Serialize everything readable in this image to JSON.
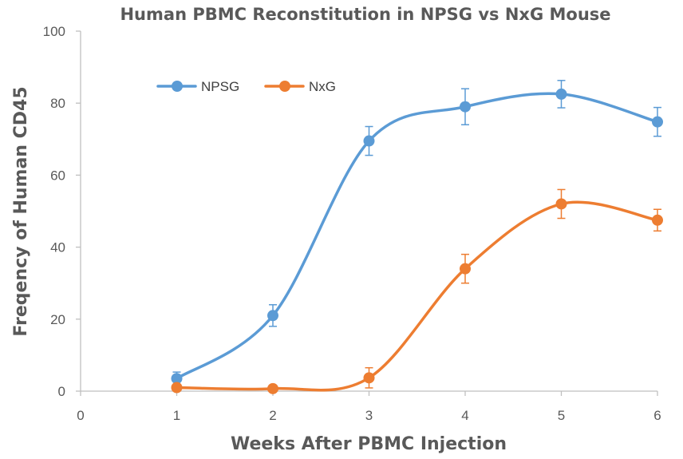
{
  "chart_data": {
    "type": "line",
    "title": "Human PBMC Reconstitution in NPSG vs NxG Mouse",
    "xlabel": "Weeks After PBMC Injection",
    "ylabel": "Freqency of Human CD45",
    "xlim": [
      0,
      6
    ],
    "ylim": [
      0,
      100
    ],
    "x_ticks": [
      "0",
      "1",
      "2",
      "3",
      "4",
      "5",
      "6"
    ],
    "y_ticks": [
      "0",
      "20",
      "40",
      "60",
      "80",
      "100"
    ],
    "grid": false,
    "smooth": true,
    "legend_position": "top-left",
    "x": [
      1,
      2,
      3,
      4,
      5,
      6
    ],
    "series": [
      {
        "name": "NPSG",
        "color": "#5B9BD5",
        "values": [
          3.5,
          21,
          69.5,
          79,
          82.5,
          74.8
        ],
        "errors": [
          1.8,
          3,
          4,
          5,
          3.8,
          4
        ]
      },
      {
        "name": "NxG",
        "color": "#ED7D31",
        "values": [
          1,
          0.7,
          3.7,
          34,
          52,
          47.5
        ],
        "errors": [
          0.5,
          0.4,
          2.8,
          4,
          4,
          3
        ]
      }
    ]
  }
}
